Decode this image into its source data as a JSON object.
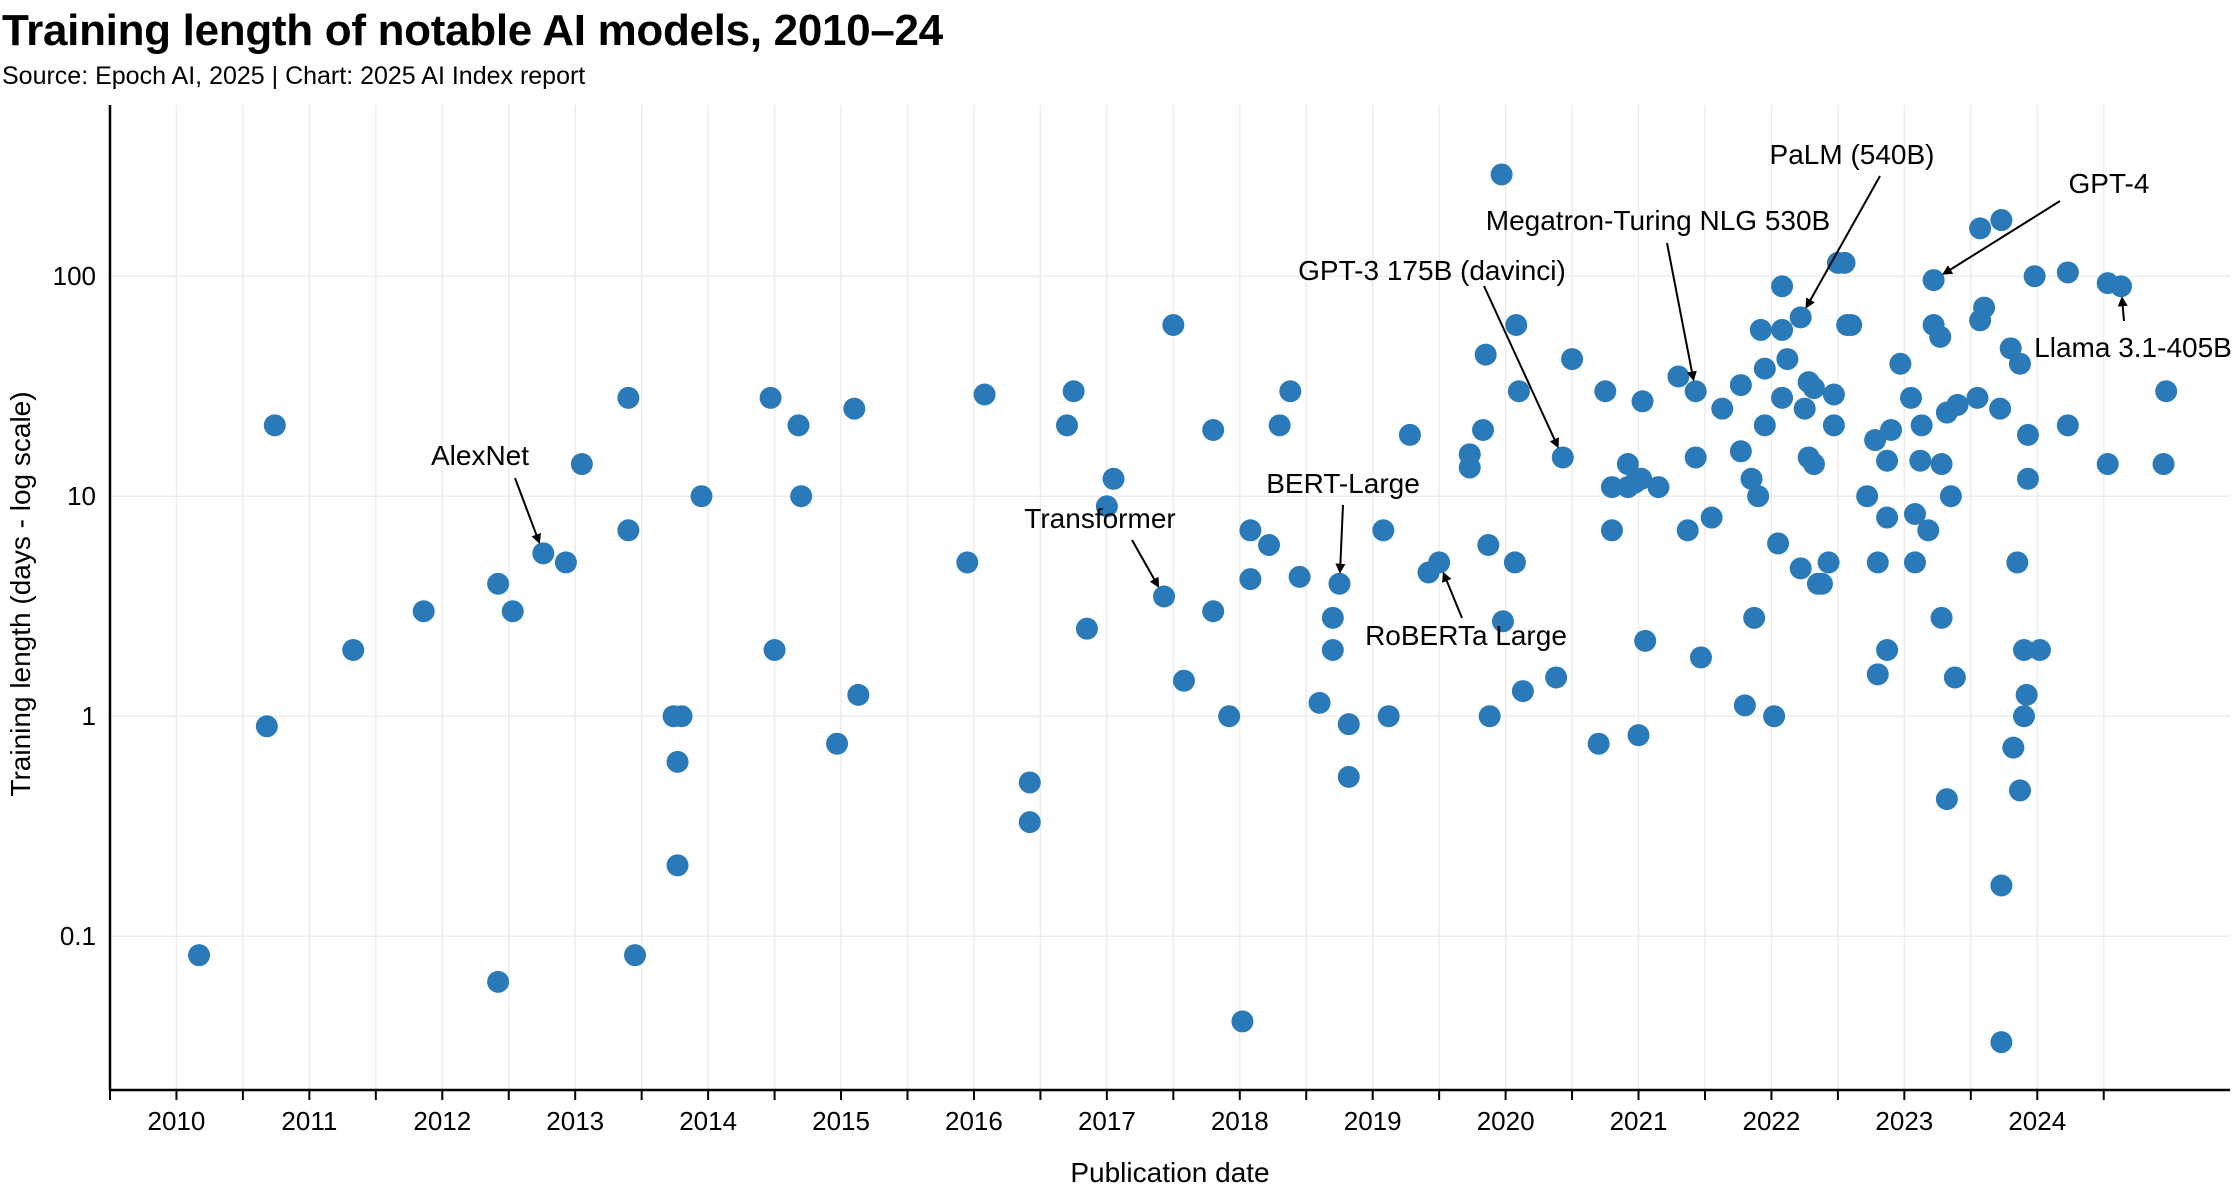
{
  "title": "Training length of notable AI models, 2010–24",
  "subtitle": "Source: Epoch AI, 2025 | Chart: 2025 AI Index report",
  "colors": {
    "point": "#2a7ab9",
    "grid": "#ececec",
    "axis": "#000000"
  },
  "chart_data": {
    "type": "scatter",
    "xlabel": "Publication date",
    "ylabel": "Training length (days - log scale)",
    "xlim": [
      2009.5,
      2025.45
    ],
    "ylim": [
      0.02,
      600
    ],
    "yscale": "log",
    "grid": true,
    "xticks": [
      2010,
      2011,
      2012,
      2013,
      2014,
      2015,
      2016,
      2017,
      2018,
      2019,
      2020,
      2021,
      2022,
      2023,
      2024
    ],
    "xtick_labels": [
      "2010",
      "2011",
      "2012",
      "2013",
      "2014",
      "2015",
      "2016",
      "2017",
      "2018",
      "2019",
      "2020",
      "2021",
      "2022",
      "2023",
      "2024"
    ],
    "yticks": [
      0.1,
      1,
      10,
      100
    ],
    "ytick_labels": [
      "0.1",
      "1",
      "10",
      "100"
    ],
    "points": [
      [
        2010.17,
        0.082
      ],
      [
        2010.68,
        0.9
      ],
      [
        2010.74,
        21
      ],
      [
        2011.33,
        2
      ],
      [
        2011.86,
        3
      ],
      [
        2012.42,
        4
      ],
      [
        2012.42,
        0.062
      ],
      [
        2012.53,
        3
      ],
      [
        2012.76,
        5.5
      ],
      [
        2012.93,
        5
      ],
      [
        2013.05,
        14
      ],
      [
        2013.4,
        28
      ],
      [
        2013.4,
        7
      ],
      [
        2013.45,
        0.082
      ],
      [
        2013.74,
        1
      ],
      [
        2013.77,
        0.62
      ],
      [
        2013.77,
        0.21
      ],
      [
        2013.8,
        1
      ],
      [
        2013.95,
        10
      ],
      [
        2014.47,
        28
      ],
      [
        2014.5,
        2
      ],
      [
        2014.68,
        21
      ],
      [
        2014.7,
        10
      ],
      [
        2014.97,
        0.75
      ],
      [
        2015.1,
        25
      ],
      [
        2015.13,
        1.25
      ],
      [
        2015.95,
        5
      ],
      [
        2016.08,
        29
      ],
      [
        2016.42,
        0.5
      ],
      [
        2016.42,
        0.33
      ],
      [
        2016.7,
        21
      ],
      [
        2016.75,
        30
      ],
      [
        2016.85,
        2.5
      ],
      [
        2017.0,
        9
      ],
      [
        2017.05,
        12
      ],
      [
        2017.43,
        3.5
      ],
      [
        2017.5,
        60
      ],
      [
        2017.58,
        1.45
      ],
      [
        2017.8,
        3
      ],
      [
        2017.8,
        20
      ],
      [
        2017.92,
        1
      ],
      [
        2018.02,
        0.041
      ],
      [
        2018.08,
        7
      ],
      [
        2018.08,
        4.2
      ],
      [
        2018.22,
        6
      ],
      [
        2018.3,
        21
      ],
      [
        2018.38,
        30
      ],
      [
        2018.45,
        4.3
      ],
      [
        2018.6,
        1.15
      ],
      [
        2018.7,
        2.8
      ],
      [
        2018.7,
        2
      ],
      [
        2018.75,
        4
      ],
      [
        2018.82,
        0.92
      ],
      [
        2018.82,
        0.53
      ],
      [
        2019.08,
        7
      ],
      [
        2019.12,
        1
      ],
      [
        2019.28,
        19
      ],
      [
        2019.42,
        4.5
      ],
      [
        2019.5,
        5
      ],
      [
        2019.73,
        15.5
      ],
      [
        2019.73,
        13.5
      ],
      [
        2019.83,
        20
      ],
      [
        2019.85,
        44
      ],
      [
        2019.87,
        6
      ],
      [
        2019.88,
        1
      ],
      [
        2019.97,
        290
      ],
      [
        2019.98,
        2.7
      ],
      [
        2020.07,
        5
      ],
      [
        2020.08,
        60
      ],
      [
        2020.1,
        30
      ],
      [
        2020.13,
        1.3
      ],
      [
        2020.38,
        1.5
      ],
      [
        2020.43,
        15
      ],
      [
        2020.5,
        42
      ],
      [
        2020.7,
        0.75
      ],
      [
        2020.75,
        30
      ],
      [
        2020.8,
        7
      ],
      [
        2020.8,
        11
      ],
      [
        2020.92,
        14
      ],
      [
        2020.92,
        11
      ],
      [
        2020.97,
        11.5
      ],
      [
        2021.0,
        0.82
      ],
      [
        2021.02,
        12
      ],
      [
        2021.03,
        27
      ],
      [
        2021.05,
        2.2
      ],
      [
        2021.15,
        11
      ],
      [
        2021.3,
        35
      ],
      [
        2021.37,
        7
      ],
      [
        2021.43,
        30
      ],
      [
        2021.43,
        15
      ],
      [
        2021.47,
        1.85
      ],
      [
        2021.55,
        8
      ],
      [
        2021.63,
        25
      ],
      [
        2021.77,
        16
      ],
      [
        2021.77,
        32
      ],
      [
        2021.8,
        1.12
      ],
      [
        2021.85,
        12
      ],
      [
        2021.87,
        2.8
      ],
      [
        2021.9,
        10
      ],
      [
        2021.92,
        57
      ],
      [
        2021.95,
        21
      ],
      [
        2021.95,
        38
      ],
      [
        2022.02,
        1
      ],
      [
        2022.05,
        6.1
      ],
      [
        2022.08,
        90
      ],
      [
        2022.08,
        28
      ],
      [
        2022.08,
        57
      ],
      [
        2022.12,
        42
      ],
      [
        2022.22,
        65
      ],
      [
        2022.22,
        4.7
      ],
      [
        2022.25,
        25
      ],
      [
        2022.28,
        33
      ],
      [
        2022.28,
        15
      ],
      [
        2022.32,
        31
      ],
      [
        2022.32,
        14
      ],
      [
        2022.35,
        4
      ],
      [
        2022.38,
        4
      ],
      [
        2022.43,
        5
      ],
      [
        2022.47,
        29
      ],
      [
        2022.47,
        21
      ],
      [
        2022.5,
        115
      ],
      [
        2022.55,
        115
      ],
      [
        2022.57,
        60
      ],
      [
        2022.6,
        60
      ],
      [
        2022.72,
        10
      ],
      [
        2022.78,
        18
      ],
      [
        2022.8,
        5
      ],
      [
        2022.8,
        1.55
      ],
      [
        2022.87,
        14.5
      ],
      [
        2022.87,
        8
      ],
      [
        2022.87,
        2
      ],
      [
        2022.9,
        20
      ],
      [
        2022.97,
        40
      ],
      [
        2023.05,
        28
      ],
      [
        2023.08,
        5
      ],
      [
        2023.08,
        8.3
      ],
      [
        2023.12,
        14.5
      ],
      [
        2023.13,
        21
      ],
      [
        2023.18,
        7
      ],
      [
        2023.22,
        96
      ],
      [
        2023.22,
        60
      ],
      [
        2023.27,
        53
      ],
      [
        2023.28,
        14
      ],
      [
        2023.28,
        2.8
      ],
      [
        2023.32,
        24
      ],
      [
        2023.32,
        0.42
      ],
      [
        2023.35,
        10
      ],
      [
        2023.38,
        1.5
      ],
      [
        2023.4,
        26
      ],
      [
        2023.55,
        28
      ],
      [
        2023.57,
        165
      ],
      [
        2023.57,
        63
      ],
      [
        2023.6,
        72
      ],
      [
        2023.72,
        25
      ],
      [
        2023.73,
        180
      ],
      [
        2023.73,
        0.17
      ],
      [
        2023.73,
        0.033
      ],
      [
        2023.8,
        47
      ],
      [
        2023.82,
        0.72
      ],
      [
        2023.85,
        5
      ],
      [
        2023.87,
        40
      ],
      [
        2023.87,
        0.46
      ],
      [
        2023.9,
        2
      ],
      [
        2023.9,
        1
      ],
      [
        2023.92,
        1.25
      ],
      [
        2023.93,
        12
      ],
      [
        2023.93,
        19
      ],
      [
        2023.98,
        100
      ],
      [
        2024.02,
        2
      ],
      [
        2024.23,
        21
      ],
      [
        2024.23,
        104
      ],
      [
        2024.53,
        93
      ],
      [
        2024.53,
        14
      ],
      [
        2024.63,
        90
      ],
      [
        2024.95,
        14
      ],
      [
        2024.97,
        30
      ]
    ],
    "annotations": [
      {
        "label": "AlexNet",
        "x": 2012.76,
        "y": 5.5,
        "anchor": "middle"
      },
      {
        "label": "Transformer",
        "x": 2017.43,
        "y": 3.5,
        "anchor": "middle"
      },
      {
        "label": "BERT-Large",
        "x": 2018.75,
        "y": 4,
        "anchor": "middle"
      },
      {
        "label": "RoBERTa Large",
        "x": 2019.5,
        "y": 5,
        "anchor": "middle"
      },
      {
        "label": "GPT-3 175B (davinci)",
        "x": 2020.43,
        "y": 15,
        "anchor": "middle"
      },
      {
        "label": "Megatron-Turing NLG 530B",
        "x": 2021.43,
        "y": 30,
        "anchor": "middle"
      },
      {
        "label": "PaLM (540B)",
        "x": 2022.22,
        "y": 65,
        "anchor": "middle"
      },
      {
        "label": "GPT-4",
        "x": 2023.22,
        "y": 96,
        "anchor": "middle"
      },
      {
        "label": "Llama 3.1-405B",
        "x": 2024.63,
        "y": 90,
        "anchor": "middle"
      }
    ]
  }
}
